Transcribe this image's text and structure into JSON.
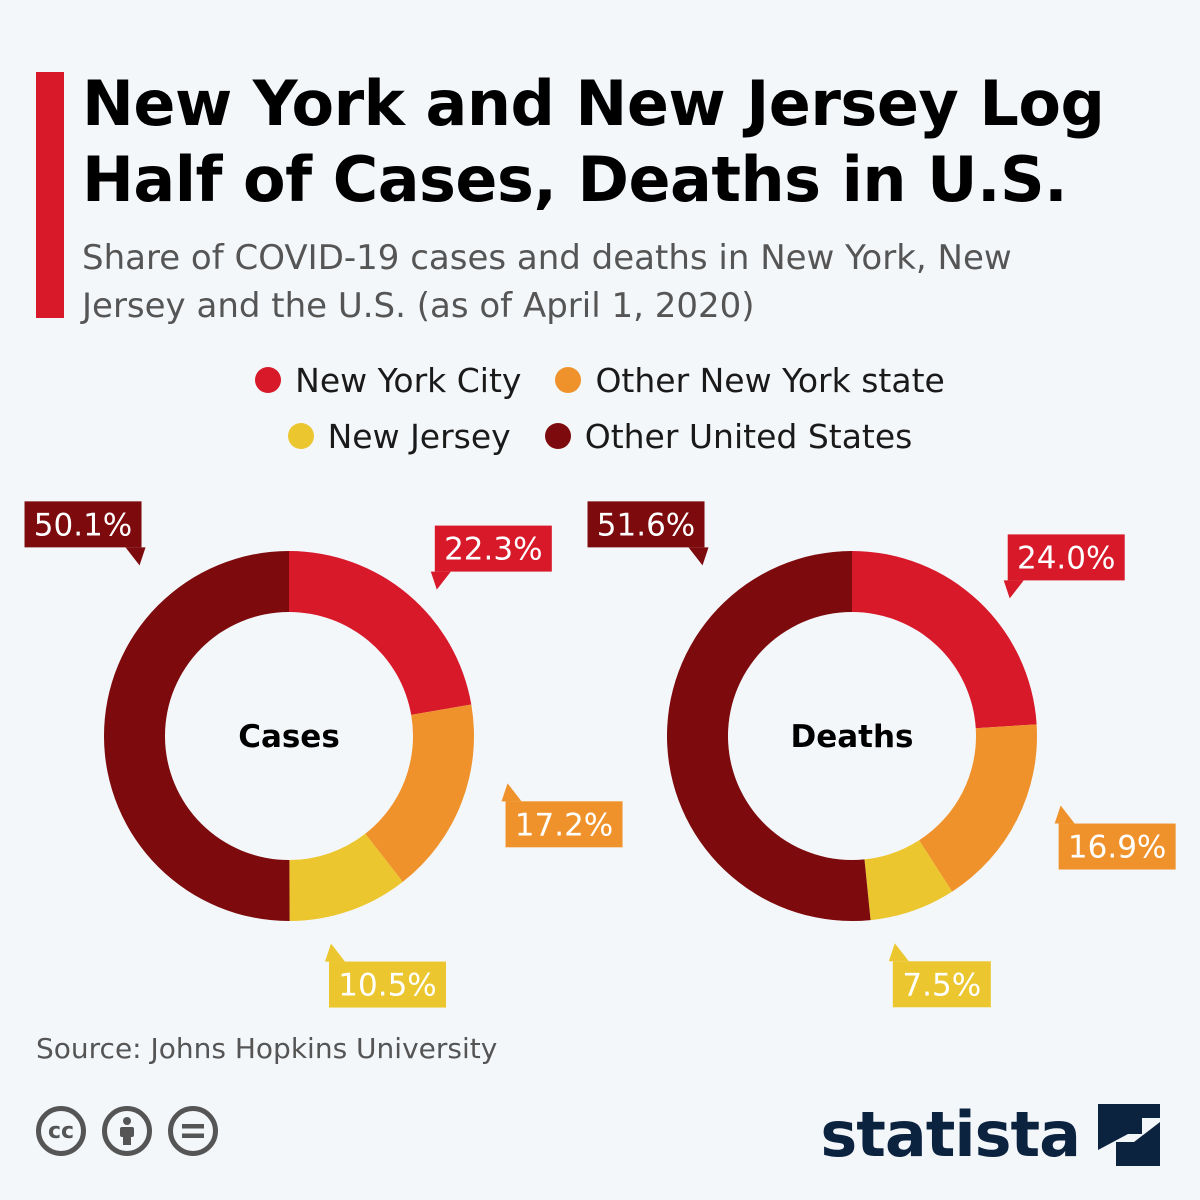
{
  "header": {
    "title": "New York and New Jersey Log Half of Cases, Deaths in U.S.",
    "subtitle": "Share of COVID-19 cases and deaths in New York, New Jersey and the U.S. (as of April 1, 2020)"
  },
  "legend": [
    {
      "label": "New York City",
      "color": "#d7192a"
    },
    {
      "label": "Other New York state",
      "color": "#f0922b"
    },
    {
      "label": "New Jersey",
      "color": "#ebc62e"
    },
    {
      "label": "Other United States",
      "color": "#7d0a0c"
    }
  ],
  "chart_data": [
    {
      "type": "pie",
      "title": "Cases",
      "categories": [
        "New York City",
        "Other New York state",
        "New Jersey",
        "Other United States"
      ],
      "values": [
        22.3,
        17.2,
        10.5,
        50.1
      ],
      "value_labels": [
        "22.3%",
        "17.2%",
        "10.5%",
        "50.1%"
      ],
      "colors": [
        "#d7192a",
        "#f0922b",
        "#ebc62e",
        "#7d0a0c"
      ]
    },
    {
      "type": "pie",
      "title": "Deaths",
      "categories": [
        "New York City",
        "Other New York state",
        "New Jersey",
        "Other United States"
      ],
      "values": [
        24.0,
        16.9,
        7.5,
        51.6
      ],
      "value_labels": [
        "24.0%",
        "16.9%",
        "7.5%",
        "51.6%"
      ],
      "colors": [
        "#d7192a",
        "#f0922b",
        "#ebc62e",
        "#7d0a0c"
      ]
    }
  ],
  "footer": {
    "source": "Source: Johns Hopkins University",
    "brand": "statista",
    "license_icons": [
      "cc-icon",
      "attribution-icon",
      "no-derivatives-icon"
    ]
  }
}
